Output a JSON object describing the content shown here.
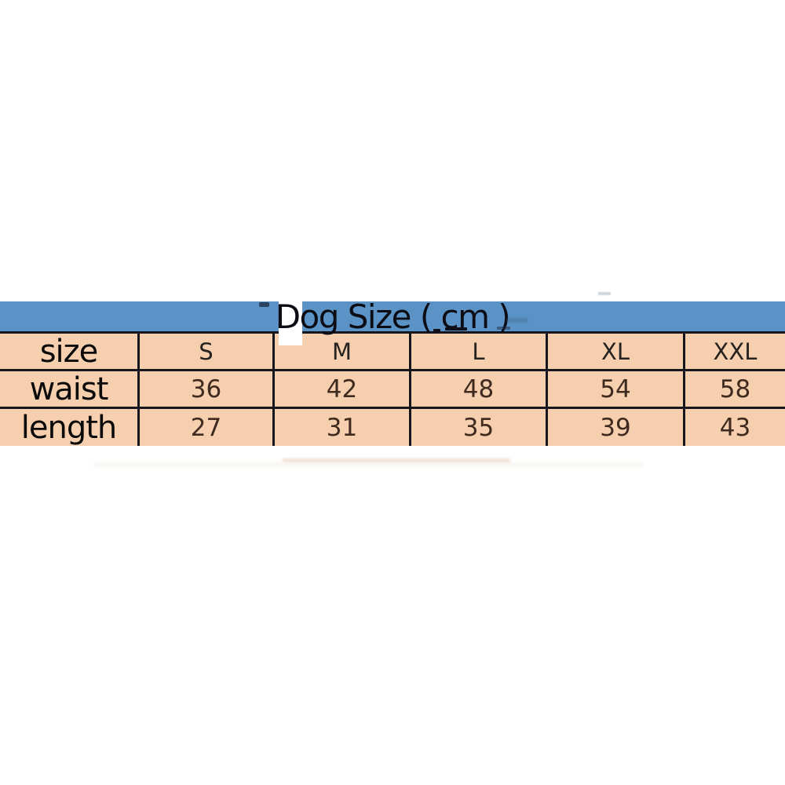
{
  "title": "Dog Size ( cm )",
  "table": {
    "corner_label": "size",
    "columns": [
      "S",
      "M",
      "L",
      "XL",
      "XXL"
    ],
    "rows": [
      {
        "label": "waist",
        "values": [
          "36",
          "42",
          "48",
          "54",
          "58"
        ]
      },
      {
        "label": "length",
        "values": [
          "27",
          "31",
          "35",
          "39",
          "43"
        ]
      }
    ]
  },
  "colors": {
    "background": "#ffffff",
    "title_bar_bg": "#5b93c6",
    "cell_bg": "#f6cfae",
    "grid_border": "#16161e",
    "title_text": "#0c0c14",
    "label_text": "#0b0b0b",
    "header_text": "#26221f",
    "value_text": "#3f2a20"
  },
  "chart_data": {
    "type": "table",
    "title": "Dog Size ( cm )",
    "units": "cm",
    "columns": [
      "S",
      "M",
      "L",
      "XL",
      "XXL"
    ],
    "rows": [
      {
        "label": "waist",
        "values": [
          36,
          42,
          48,
          54,
          58
        ]
      },
      {
        "label": "length",
        "values": [
          27,
          31,
          35,
          39,
          43
        ]
      }
    ]
  }
}
